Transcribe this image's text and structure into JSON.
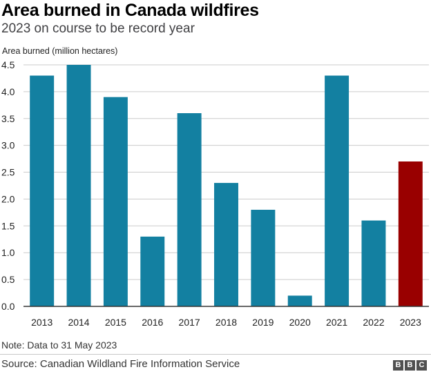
{
  "header": {
    "title": "Area burned in Canada wildfires",
    "subtitle": "2023 on course to be record year"
  },
  "footer": {
    "note": "Note: Data to 31 May 2023",
    "source": "Source: Canadian Wildland Fire Information Service",
    "logo_letters": [
      "B",
      "B",
      "C"
    ]
  },
  "colors": {
    "bar": "#1380a1",
    "highlight": "#990000",
    "grid": "#cbcbcb",
    "baseline": "#333333"
  },
  "chart_data": {
    "type": "bar",
    "title": "Area burned in Canada wildfires",
    "subtitle": "2023 on course to be record year",
    "ylabel": "Area burned (million hectares)",
    "xlabel": "",
    "categories": [
      "2013",
      "2014",
      "2015",
      "2016",
      "2017",
      "2018",
      "2019",
      "2020",
      "2021",
      "2022",
      "2023"
    ],
    "values": [
      4.3,
      4.5,
      3.9,
      1.3,
      3.6,
      2.3,
      1.8,
      0.2,
      4.3,
      1.6,
      2.7
    ],
    "highlight_category": "2023",
    "ylim": [
      0,
      4.5
    ],
    "yticks": [
      "0.0",
      "0.5",
      "1.0",
      "1.5",
      "2.0",
      "2.5",
      "3.0",
      "3.5",
      "4.0",
      "4.5"
    ],
    "grid": true
  }
}
